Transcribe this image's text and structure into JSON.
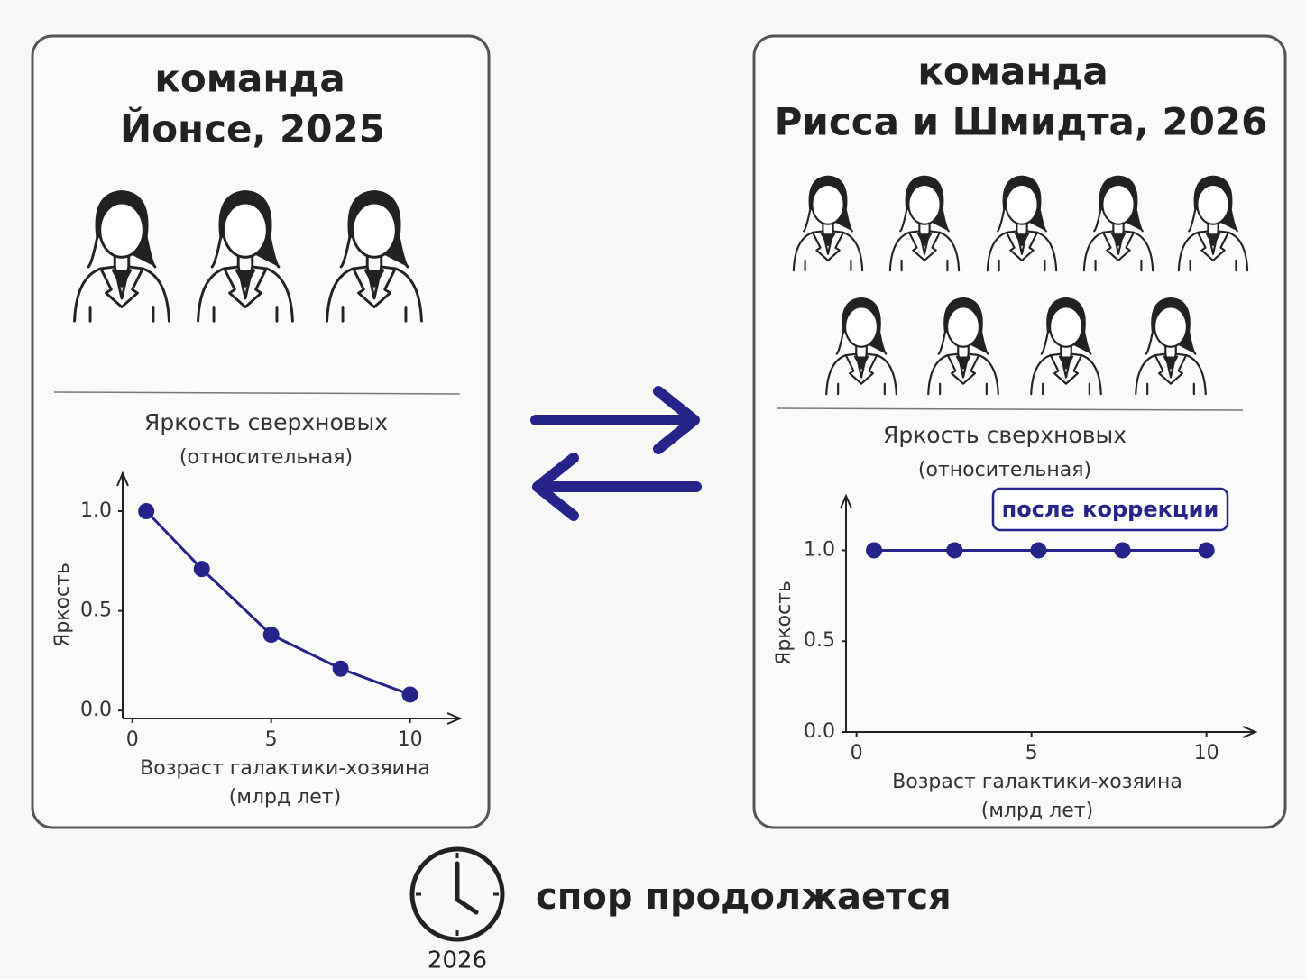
{
  "panels": [
    {
      "title": [
        "команда",
        "Йонсе, 2025"
      ]
    },
    {
      "title": [
        "команда",
        "Рисса и Шмидта, 2026"
      ]
    }
  ],
  "chart_data": [
    {
      "type": "line",
      "title": "Яркость сверхновых",
      "subtitle": "(относительная)",
      "ylabel": "Яркость",
      "xlabel": [
        "Возраст галактики-хозяина",
        "(млрд лет)"
      ],
      "x": [
        0.5,
        2.5,
        5,
        7.5,
        10
      ],
      "series": [
        {
          "color": "#26238a",
          "values": [
            1.0,
            0.71,
            0.38,
            0.21,
            0.08
          ]
        }
      ],
      "xlim": [
        -0.35,
        11.8
      ],
      "ylim": [
        -0.04,
        1.19
      ],
      "xticks": [
        0,
        5,
        10
      ],
      "yticks": [
        {
          "value": 0,
          "label": "0.0"
        },
        {
          "value": 0.5,
          "label": "0.5"
        },
        {
          "value": 1,
          "label": "1.0"
        }
      ]
    },
    {
      "type": "line",
      "title": "Яркость сверхновых",
      "subtitle": "(относительная)",
      "ylabel": "Яркость",
      "xlabel": [
        "Возраст галактики-хозяина",
        "(млрд лет)"
      ],
      "annotation": "после коррекции",
      "x": [
        0.5,
        2.8,
        5.2,
        7.6,
        10
      ],
      "series": [
        {
          "color": "#26238a",
          "values": [
            1.0,
            1.0,
            1.0,
            1.0,
            1.0
          ]
        }
      ],
      "xlim": [
        -0.3,
        11.4
      ],
      "ylim": [
        0,
        1.3
      ],
      "xticks": [
        0,
        5,
        10
      ],
      "yticks": [
        {
          "value": 0,
          "label": "0.0"
        },
        {
          "value": 0.5,
          "label": "0.5"
        },
        {
          "value": 1,
          "label": "1.0"
        }
      ]
    }
  ],
  "footer": {
    "text": "спор продолжается",
    "year": "2026"
  }
}
